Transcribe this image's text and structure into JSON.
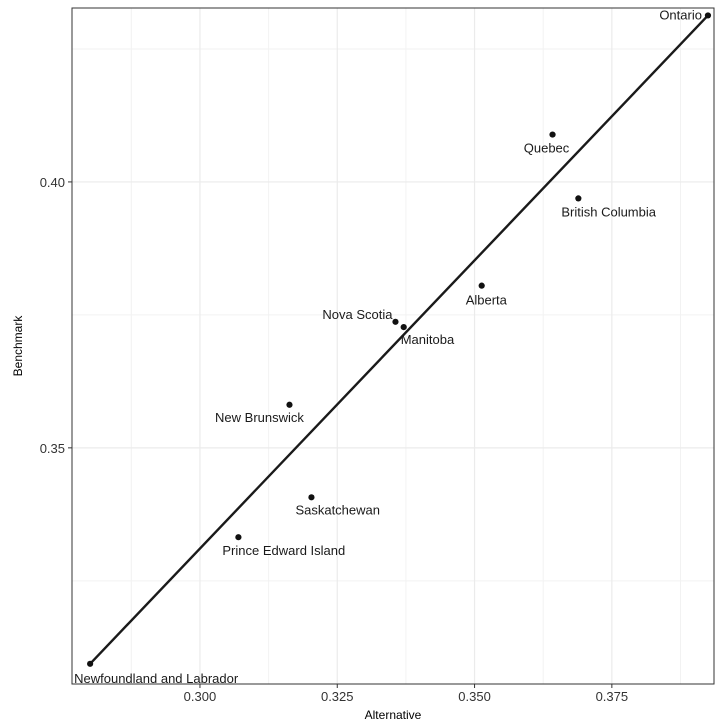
{
  "chart_data": {
    "type": "scatter",
    "xlabel": "Alternative",
    "ylabel": "Benchmark",
    "xlim": [
      0.2767,
      0.3936
    ],
    "ylim": [
      0.3056,
      0.4327
    ],
    "x_ticks": [
      0.3,
      0.325,
      0.35,
      0.375
    ],
    "x_tick_labels": [
      "0.300",
      "0.325",
      "0.350",
      "0.375"
    ],
    "y_ticks": [
      0.35,
      0.4
    ],
    "y_tick_labels": [
      "0.35",
      "0.40"
    ],
    "grid": true,
    "points": [
      {
        "label": "Ontario",
        "x": 0.3925,
        "y": 0.4313
      },
      {
        "label": "Quebec",
        "x": 0.3642,
        "y": 0.4089
      },
      {
        "label": "British Columbia",
        "x": 0.3689,
        "y": 0.3969
      },
      {
        "label": "Alberta",
        "x": 0.3513,
        "y": 0.3805
      },
      {
        "label": "Nova Scotia",
        "x": 0.3356,
        "y": 0.3737
      },
      {
        "label": "Manitoba",
        "x": 0.3371,
        "y": 0.3727
      },
      {
        "label": "New Brunswick",
        "x": 0.3163,
        "y": 0.3581
      },
      {
        "label": "Saskatchewan",
        "x": 0.3203,
        "y": 0.3407
      },
      {
        "label": "Prince Edward Island",
        "x": 0.307,
        "y": 0.3332
      },
      {
        "label": "Newfoundland and Labrador",
        "x": 0.28,
        "y": 0.3094
      }
    ],
    "fit_line": {
      "x": [
        0.28,
        0.3925
      ],
      "y": [
        0.3094,
        0.4313
      ]
    }
  }
}
